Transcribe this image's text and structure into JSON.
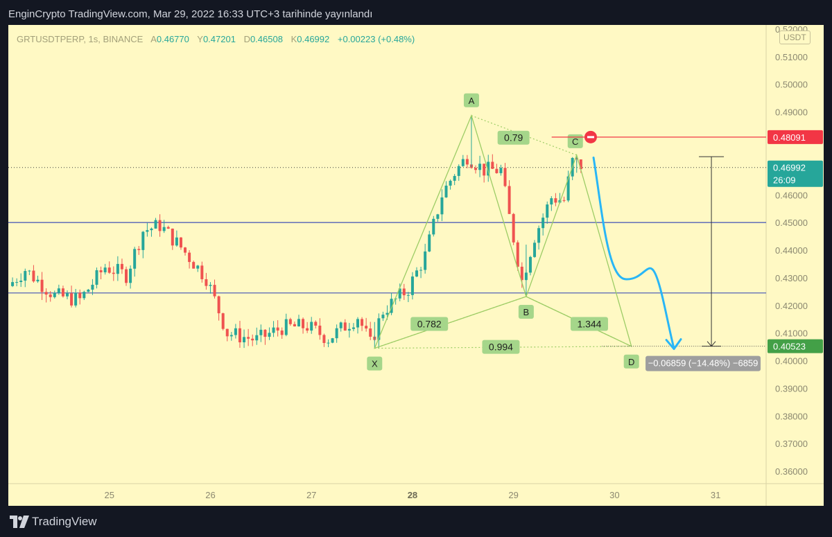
{
  "header": {
    "text": "EnginCrypto TradingView.com, Mar 29, 2022 16:33 UTC+3 tarihinde yayınlandı"
  },
  "footer": {
    "brand": "TradingView"
  },
  "legend": {
    "symbol": "GRTUSDTPERP, 1s, BINANCE",
    "o_label": "A",
    "o": "0.46770",
    "h_label": "Y",
    "h": "0.47201",
    "l_label": "D",
    "l": "0.46508",
    "c_label": "K",
    "c": "0.46992",
    "change": "+0.00223 (+0.48%)"
  },
  "currency_badge": "USDT",
  "colors": {
    "up": "#26a69a",
    "down": "#ef5350",
    "pattern": "#9ccc65",
    "hline": "#3f51b5",
    "arrow": "#29b6f6",
    "stop": "#f23645",
    "target": "#43a047",
    "bg": "#fff9c4"
  },
  "chart_data": {
    "type": "candlestick",
    "x_ticks": [
      "25",
      "26",
      "27",
      "28",
      "29",
      "30",
      "31"
    ],
    "y_ticks": [
      "0.52000",
      "0.51000",
      "0.50000",
      "0.49000",
      "0.46000",
      "0.45000",
      "0.44000",
      "0.43000",
      "0.42000",
      "0.41000",
      "0.40000",
      "0.39000",
      "0.38000",
      "0.37000",
      "0.36000"
    ],
    "y_range": [
      0.3555,
      0.5215
    ],
    "time_range": [
      "2022-03-24T00:00",
      "2022-03-31T12:00"
    ],
    "price_tags": {
      "stop": "0.48091",
      "last": "0.46992",
      "countdown": "26:09",
      "target": "0.40523"
    },
    "horizontal_lines": [
      0.45,
      0.4245
    ],
    "pattern_points": [
      {
        "label": "X",
        "t": "2022-03-27T15:00",
        "price": 0.4045
      },
      {
        "label": "A",
        "t": "2022-03-28T14:00",
        "price": 0.4887
      },
      {
        "label": "B",
        "t": "2022-03-29T03:00",
        "price": 0.4232
      },
      {
        "label": "C",
        "t": "2022-03-29T15:00",
        "price": 0.4744
      },
      {
        "label": "D",
        "t": "2022-03-30T04:00",
        "price": 0.4052
      }
    ],
    "ratios": [
      {
        "value": "0.79",
        "t": "2022-03-29T00:00",
        "price": 0.4807
      },
      {
        "value": "0.782",
        "t": "2022-03-28T04:00",
        "price": 0.4133
      },
      {
        "value": "1.344",
        "t": "2022-03-29T18:00",
        "price": 0.4133
      },
      {
        "value": "0.994",
        "t": "2022-03-28T21:00",
        "price": 0.405
      }
    ],
    "measure": {
      "label": "−0.06859 (−14.48%) −6859",
      "from": 0.47382,
      "to": 0.40523
    },
    "candles_summary": {
      "count": 172,
      "interval": "1h",
      "open_first": 0.43,
      "close_last": 0.46992
    }
  }
}
